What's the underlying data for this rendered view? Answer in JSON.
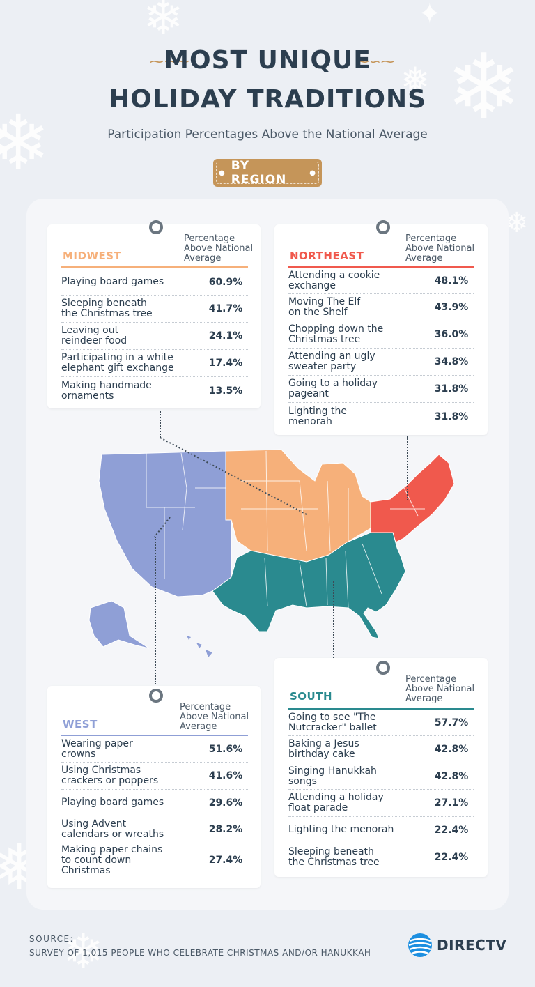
{
  "title_line1": "MOST UNIQUE",
  "title_line2": "HOLIDAY TRADITIONS",
  "subtitle": "Participation Percentages Above the National Average",
  "badge": "BY REGION",
  "column_header": "Percentage\nAbove National\nAverage",
  "colors": {
    "midwest": "#f6b07a",
    "northeast": "#f0594d",
    "west": "#8f9fd6",
    "south": "#2a8a8f",
    "accent": "#c59559",
    "text": "#2c3e4f"
  },
  "chart_data": [
    {
      "type": "table",
      "region": "MIDWEST",
      "rows": [
        {
          "label": "Playing board games",
          "value": "60.9%"
        },
        {
          "label": "Sleeping beneath\nthe Christmas tree",
          "value": "41.7%"
        },
        {
          "label": "Leaving out\nreindeer food",
          "value": "24.1%"
        },
        {
          "label": "Participating in a white\nelephant gift exchange",
          "value": "17.4%"
        },
        {
          "label": "Making handmade\nornaments",
          "value": "13.5%"
        }
      ]
    },
    {
      "type": "table",
      "region": "NORTHEAST",
      "rows": [
        {
          "label": "Attending a cookie\nexchange",
          "value": "48.1%"
        },
        {
          "label": "Moving The Elf\non the Shelf",
          "value": "43.9%"
        },
        {
          "label": "Chopping down the\nChristmas tree",
          "value": "36.0%"
        },
        {
          "label": "Attending an ugly\nsweater party",
          "value": "34.8%"
        },
        {
          "label": "Going to a holiday\npageant",
          "value": "31.8%"
        },
        {
          "label": "Lighting the\nmenorah",
          "value": "31.8%"
        }
      ]
    },
    {
      "type": "table",
      "region": "WEST",
      "rows": [
        {
          "label": "Wearing paper\ncrowns",
          "value": "51.6%"
        },
        {
          "label": "Using Christmas\ncrackers or poppers",
          "value": "41.6%"
        },
        {
          "label": "Playing board games",
          "value": "29.6%"
        },
        {
          "label": "Using Advent\ncalendars or wreaths",
          "value": "28.2%"
        },
        {
          "label": "Making paper chains\nto count down\nChristmas",
          "value": "27.4%"
        }
      ]
    },
    {
      "type": "table",
      "region": "SOUTH",
      "rows": [
        {
          "label": "Going to see \"The\nNutcracker\" ballet",
          "value": "57.7%"
        },
        {
          "label": "Baking a Jesus\nbirthday cake",
          "value": "42.8%"
        },
        {
          "label": "Singing Hanukkah\nsongs",
          "value": "42.8%"
        },
        {
          "label": "Attending a holiday\nfloat parade",
          "value": "27.1%"
        },
        {
          "label": "Lighting the menorah",
          "value": "22.4%"
        },
        {
          "label": "Sleeping beneath\nthe Christmas tree",
          "value": "22.4%"
        }
      ]
    }
  ],
  "source_heading": "SOURCE:",
  "source_text": "SURVEY OF 1,015 PEOPLE WHO CELEBRATE CHRISTMAS AND/OR HANUKKAH",
  "brand": "DIRECTV",
  "icons": [
    "snowflake-icon",
    "swirl-ornament-icon",
    "pin-icon",
    "globe-logo-icon"
  ]
}
